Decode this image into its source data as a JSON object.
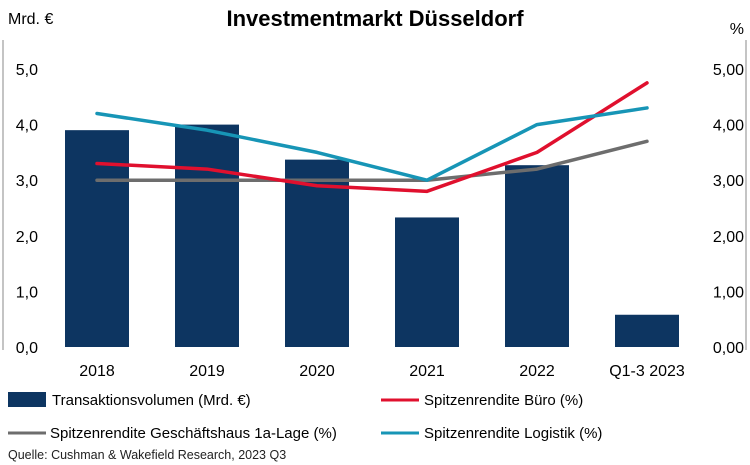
{
  "chart_data": {
    "type": "bar",
    "title": "Investmentmarkt Düsseldorf",
    "y_left_label": "Mrd. €",
    "y_right_label": "%",
    "categories": [
      "2018",
      "2019",
      "2020",
      "2021",
      "2022",
      "Q1-3 2023"
    ],
    "ylim": [
      0,
      5
    ],
    "y_left_ticks": [
      "0,0",
      "1,0",
      "2,0",
      "3,0",
      "4,0",
      "5,0"
    ],
    "y_right_ticks": [
      "0,00",
      "1,00",
      "2,00",
      "3,00",
      "4,00",
      "5,00"
    ],
    "bars": {
      "name": "Transaktionsvolumen (Mrd. €)",
      "color": "#0d3561",
      "values": [
        3.9,
        4.0,
        3.37,
        2.33,
        3.27,
        0.58
      ]
    },
    "series": [
      {
        "name": "Spitzenrendite Büro (%)",
        "color": "#e0102e",
        "values": [
          3.3,
          3.2,
          2.9,
          2.8,
          3.5,
          4.75
        ]
      },
      {
        "name": "Spitzenrendite Geschäftshaus 1a-Lage (%)",
        "color": "#6d6d6d",
        "values": [
          3.0,
          3.0,
          3.0,
          3.0,
          3.2,
          3.7
        ]
      },
      {
        "name": "Spitzenrendite Logistik (%)",
        "color": "#1795b6",
        "values": [
          4.2,
          3.9,
          3.5,
          3.0,
          4.0,
          4.3
        ]
      }
    ],
    "source": "Quelle: Cushman & Wakefield Research, 2023 Q3"
  }
}
